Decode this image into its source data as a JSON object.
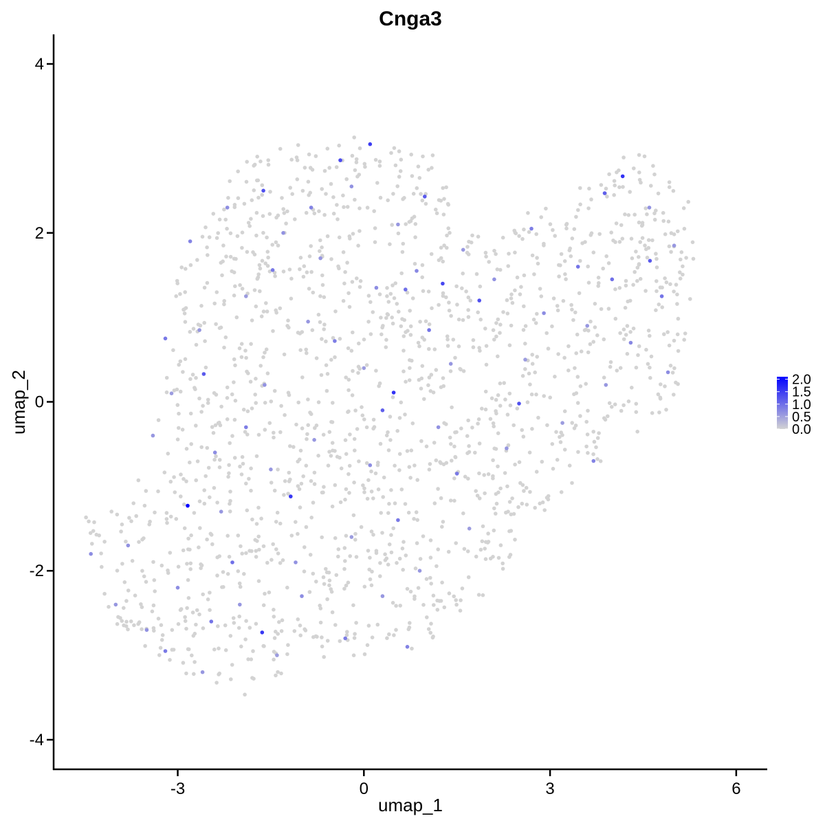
{
  "chart_data": {
    "type": "scatter",
    "title": "Cnga3",
    "xlabel": "umap_1",
    "ylabel": "umap_2",
    "xlim": [
      -5.0,
      6.5
    ],
    "ylim": [
      -4.35,
      4.35
    ],
    "xticks": [
      -3,
      0,
      3,
      6
    ],
    "xtick_labels": [
      "-3",
      "0",
      "3",
      "6"
    ],
    "yticks": [
      -4,
      -2,
      0,
      2,
      4
    ],
    "ytick_labels": [
      "-4",
      "-2",
      "0",
      "2",
      "4"
    ],
    "grid": false,
    "legend_position": "right",
    "color_scale": {
      "low_color": "#d3d3d3",
      "high_color": "#0000ff",
      "min": 0.0,
      "max": 2.1,
      "breaks": [
        0.0,
        0.5,
        1.0,
        1.5,
        2.0
      ],
      "break_labels": [
        "0.0",
        "0.5",
        "1.0",
        "1.5",
        "2.0"
      ]
    },
    "background_points": {
      "count": 1600,
      "value": 0.0,
      "region_outline": [
        [
          -4.6,
          -1.1
        ],
        [
          -3.9,
          -1.35
        ],
        [
          -3.3,
          -0.1
        ],
        [
          -3.0,
          1.6
        ],
        [
          -2.5,
          2.15
        ],
        [
          -2.0,
          2.85
        ],
        [
          -1.2,
          3.05
        ],
        [
          0.0,
          3.15
        ],
        [
          1.2,
          2.9
        ],
        [
          1.6,
          2.0
        ],
        [
          2.2,
          1.95
        ],
        [
          2.6,
          2.3
        ],
        [
          3.6,
          2.6
        ],
        [
          4.5,
          3.05
        ],
        [
          5.3,
          2.3
        ],
        [
          5.35,
          0.7
        ],
        [
          4.9,
          -0.1
        ],
        [
          4.0,
          -0.6
        ],
        [
          3.5,
          -0.9
        ],
        [
          2.8,
          -1.4
        ],
        [
          2.0,
          -2.3
        ],
        [
          1.0,
          -2.9
        ],
        [
          0.0,
          -3.0
        ],
        [
          -1.0,
          -3.1
        ],
        [
          -2.0,
          -3.5
        ],
        [
          -3.0,
          -3.2
        ],
        [
          -4.1,
          -2.7
        ],
        [
          -4.3,
          -1.9
        ]
      ]
    },
    "expressing_points": [
      {
        "x": -2.84,
        "y": -1.23,
        "value": 2.1
      },
      {
        "x": 0.48,
        "y": 0.11,
        "value": 1.6
      },
      {
        "x": -1.18,
        "y": -1.12,
        "value": 1.55
      },
      {
        "x": 0.1,
        "y": 3.05,
        "value": 1.5
      },
      {
        "x": 4.17,
        "y": 2.67,
        "value": 1.6
      },
      {
        "x": -1.64,
        "y": -2.73,
        "value": 1.55
      },
      {
        "x": -1.62,
        "y": 2.5,
        "value": 1.3
      },
      {
        "x": -0.38,
        "y": 2.86,
        "value": 1.35
      },
      {
        "x": 0.98,
        "y": 2.43,
        "value": 1.2
      },
      {
        "x": 1.27,
        "y": 1.4,
        "value": 1.4
      },
      {
        "x": 1.86,
        "y": 1.2,
        "value": 1.3
      },
      {
        "x": 2.5,
        "y": -0.02,
        "value": 1.3
      },
      {
        "x": -2.58,
        "y": 0.33,
        "value": 1.2
      },
      {
        "x": 3.88,
        "y": 2.47,
        "value": 1.15
      },
      {
        "x": 4.61,
        "y": 1.67,
        "value": 1.2
      },
      {
        "x": 0.3,
        "y": -0.1,
        "value": 1.15
      },
      {
        "x": -1.47,
        "y": 1.56,
        "value": 0.9
      },
      {
        "x": -0.85,
        "y": 2.3,
        "value": 0.8
      },
      {
        "x": -0.47,
        "y": 0.72,
        "value": 0.85
      },
      {
        "x": 0.67,
        "y": 1.33,
        "value": 1.0
      },
      {
        "x": 1.05,
        "y": 0.85,
        "value": 0.95
      },
      {
        "x": -2.12,
        "y": -1.9,
        "value": 1.0
      },
      {
        "x": -2.46,
        "y": -2.6,
        "value": 0.95
      },
      {
        "x": -3.2,
        "y": -2.95,
        "value": 0.9
      },
      {
        "x": -1.9,
        "y": -0.3,
        "value": 0.85
      },
      {
        "x": 2.7,
        "y": 2.05,
        "value": 0.85
      },
      {
        "x": 3.45,
        "y": 1.6,
        "value": 0.95
      },
      {
        "x": 4.0,
        "y": 1.45,
        "value": 1.0
      },
      {
        "x": 4.8,
        "y": 1.25,
        "value": 0.95
      },
      {
        "x": 3.7,
        "y": -0.7,
        "value": 0.8
      },
      {
        "x": 1.5,
        "y": -0.85,
        "value": 0.9
      },
      {
        "x": 0.55,
        "y": -1.4,
        "value": 0.9
      },
      {
        "x": -0.3,
        "y": -2.8,
        "value": 0.85
      },
      {
        "x": 0.7,
        "y": -2.9,
        "value": 0.8
      },
      {
        "x": -3.2,
        "y": 0.75,
        "value": 0.9
      },
      {
        "x": -2.8,
        "y": 1.9,
        "value": 0.8
      },
      {
        "x": -2.2,
        "y": 2.3,
        "value": 0.7
      },
      {
        "x": -1.3,
        "y": 2.0,
        "value": 0.65
      },
      {
        "x": -0.7,
        "y": 1.7,
        "value": 0.6
      },
      {
        "x": 0.2,
        "y": 1.35,
        "value": 0.7
      },
      {
        "x": 0.85,
        "y": 1.55,
        "value": 0.75
      },
      {
        "x": 1.6,
        "y": 1.8,
        "value": 0.6
      },
      {
        "x": 2.1,
        "y": 1.45,
        "value": 0.65
      },
      {
        "x": 2.9,
        "y": 1.05,
        "value": 0.7
      },
      {
        "x": 3.6,
        "y": 0.9,
        "value": 0.6
      },
      {
        "x": 4.3,
        "y": 0.7,
        "value": 0.75
      },
      {
        "x": 4.9,
        "y": 0.35,
        "value": 0.7
      },
      {
        "x": 3.2,
        "y": -0.25,
        "value": 0.55
      },
      {
        "x": 2.3,
        "y": -0.55,
        "value": 0.6
      },
      {
        "x": 1.2,
        "y": -0.3,
        "value": 0.65
      },
      {
        "x": 0.1,
        "y": -0.75,
        "value": 0.7
      },
      {
        "x": -0.8,
        "y": -0.45,
        "value": 0.6
      },
      {
        "x": -1.6,
        "y": 0.2,
        "value": 0.65
      },
      {
        "x": -2.4,
        "y": -0.6,
        "value": 0.7
      },
      {
        "x": -3.4,
        "y": -0.4,
        "value": 0.6
      },
      {
        "x": -3.8,
        "y": -1.7,
        "value": 0.65
      },
      {
        "x": -3.0,
        "y": -2.2,
        "value": 0.7
      },
      {
        "x": -2.0,
        "y": -2.4,
        "value": 0.6
      },
      {
        "x": -1.1,
        "y": -1.9,
        "value": 0.65
      },
      {
        "x": -0.2,
        "y": -1.6,
        "value": 0.55
      },
      {
        "x": 0.9,
        "y": -2.0,
        "value": 0.6
      },
      {
        "x": 1.7,
        "y": -1.5,
        "value": 0.55
      },
      {
        "x": -4.4,
        "y": -1.8,
        "value": 0.7
      },
      {
        "x": -4.0,
        "y": -2.4,
        "value": 0.6
      },
      {
        "x": -3.5,
        "y": -2.7,
        "value": 0.65
      },
      {
        "x": -2.6,
        "y": -3.2,
        "value": 0.6
      },
      {
        "x": -1.4,
        "y": -3.0,
        "value": 0.55
      },
      {
        "x": -0.9,
        "y": 0.95,
        "value": 0.6
      },
      {
        "x": -1.9,
        "y": 1.25,
        "value": 0.55
      },
      {
        "x": -2.65,
        "y": 0.85,
        "value": 0.6
      },
      {
        "x": -0.2,
        "y": 2.55,
        "value": 0.65
      },
      {
        "x": 0.55,
        "y": 2.1,
        "value": 0.6
      },
      {
        "x": 1.4,
        "y": 0.45,
        "value": 0.6
      },
      {
        "x": 2.6,
        "y": 0.5,
        "value": 0.55
      },
      {
        "x": 3.9,
        "y": 0.2,
        "value": 0.6
      },
      {
        "x": 4.6,
        "y": 2.3,
        "value": 0.65
      },
      {
        "x": 5.0,
        "y": 1.85,
        "value": 0.6
      },
      {
        "x": -1.0,
        "y": -2.3,
        "value": 0.7
      },
      {
        "x": 0.3,
        "y": -2.3,
        "value": 0.6
      },
      {
        "x": -2.3,
        "y": -1.3,
        "value": 0.6
      },
      {
        "x": -3.1,
        "y": 0.1,
        "value": 0.55
      },
      {
        "x": 0.0,
        "y": 0.4,
        "value": 0.55
      },
      {
        "x": -1.5,
        "y": -0.8,
        "value": 0.6
      }
    ]
  }
}
